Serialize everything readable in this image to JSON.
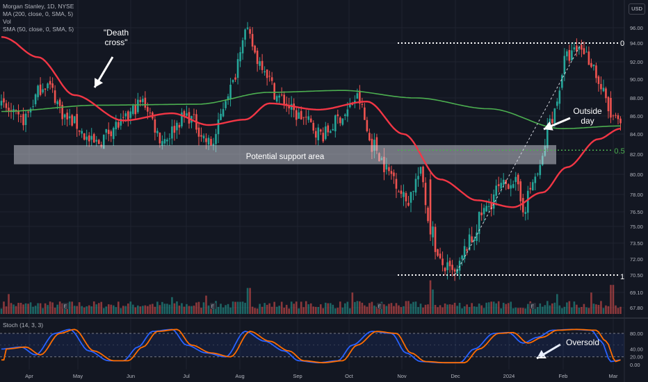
{
  "legend": {
    "symbol": "Morgan Stanley, 1D, NYSE",
    "ma200": "MA (200, close, 0, SMA, 5)",
    "vol": "Vol",
    "sma50": "SMA (50, close, 0, SMA, 5)"
  },
  "currency_button": "USD",
  "stoch_label": "Stoch (14, 3, 3)",
  "annotations": {
    "death_cross": "\"Death\ncross\"",
    "outside_day": "Outside\nday",
    "oversold": "Oversold",
    "support_zone": "Potential support area",
    "fib_0": "0",
    "fib_05": "0.5",
    "fib_1": "1"
  },
  "colors": {
    "background": "#131722",
    "grid": "#1f2330",
    "up": "#26a69a",
    "down": "#ef5350",
    "ma200": "#4caf50",
    "sma50": "#f23645",
    "stoch_k": "#2962ff",
    "stoch_d": "#ff6d00",
    "support_zone": "#d1d4dc",
    "text": "#b2b5be"
  },
  "chart_data": {
    "type": "candlestick",
    "x_labels": [
      "Apr",
      "May",
      "Jun",
      "Jul",
      "Aug",
      "Sep",
      "Oct",
      "Nov",
      "Dec",
      "2024",
      "Feb",
      "Mar"
    ],
    "y_ticks": [
      "96.00",
      "94.00",
      "92.00",
      "90.00",
      "88.00",
      "86.00",
      "84.00",
      "82.00",
      "80.00",
      "78.00",
      "76.50",
      "75.00",
      "73.50",
      "72.00",
      "70.50",
      "69.10",
      "67.80"
    ],
    "stoch_ticks": [
      "80.00",
      "40.00",
      "20.00",
      "0.00"
    ],
    "series_keypoints": {
      "price_close": [
        [
          0,
          87.0
        ],
        [
          8,
          85.5
        ],
        [
          18,
          89.5
        ],
        [
          28,
          85.5
        ],
        [
          38,
          83.0
        ],
        [
          48,
          85.0
        ],
        [
          58,
          87.5
        ],
        [
          66,
          83.5
        ],
        [
          76,
          86.0
        ],
        [
          86,
          83.0
        ],
        [
          94,
          89.0
        ],
        [
          100,
          95.5
        ],
        [
          106,
          92.0
        ],
        [
          114,
          88.0
        ],
        [
          122,
          86.0
        ],
        [
          132,
          84.0
        ],
        [
          140,
          86.0
        ],
        [
          146,
          88.0
        ],
        [
          152,
          83.0
        ],
        [
          160,
          80.0
        ],
        [
          166,
          77.5
        ],
        [
          172,
          80.0
        ],
        [
          176,
          75.0
        ],
        [
          180,
          71.5
        ],
        [
          186,
          70.5
        ],
        [
          192,
          73.5
        ],
        [
          198,
          76.5
        ],
        [
          204,
          78.5
        ],
        [
          210,
          79.5
        ],
        [
          214,
          77.0
        ],
        [
          220,
          80.0
        ],
        [
          226,
          86.0
        ],
        [
          232,
          92.5
        ],
        [
          238,
          93.5
        ],
        [
          242,
          92.0
        ],
        [
          246,
          89.0
        ],
        [
          250,
          86.0
        ],
        [
          254,
          85.0
        ]
      ],
      "ma200": [
        [
          0,
          86.5
        ],
        [
          40,
          87.2
        ],
        [
          80,
          87.3
        ],
        [
          110,
          88.6
        ],
        [
          140,
          88.8
        ],
        [
          170,
          88.0
        ],
        [
          200,
          86.8
        ],
        [
          230,
          84.6
        ],
        [
          254,
          84.9
        ]
      ],
      "sma50": [
        [
          0,
          94.8
        ],
        [
          15,
          92.5
        ],
        [
          30,
          88.3
        ],
        [
          50,
          85.5
        ],
        [
          70,
          86.3
        ],
        [
          85,
          85.0
        ],
        [
          100,
          85.6
        ],
        [
          110,
          87.4
        ],
        [
          130,
          86.7
        ],
        [
          150,
          87.6
        ],
        [
          165,
          84.0
        ],
        [
          180,
          79.5
        ],
        [
          195,
          77.5
        ],
        [
          210,
          76.9
        ],
        [
          222,
          78.2
        ],
        [
          232,
          80.7
        ],
        [
          245,
          83.5
        ],
        [
          254,
          84.6
        ]
      ],
      "stoch_k": [
        [
          0,
          40
        ],
        [
          8,
          45
        ],
        [
          14,
          25
        ],
        [
          22,
          80
        ],
        [
          28,
          90
        ],
        [
          36,
          35
        ],
        [
          44,
          10
        ],
        [
          50,
          10
        ],
        [
          56,
          45
        ],
        [
          62,
          85
        ],
        [
          70,
          90
        ],
        [
          76,
          50
        ],
        [
          84,
          30
        ],
        [
          92,
          20
        ],
        [
          100,
          85
        ],
        [
          108,
          60
        ],
        [
          116,
          35
        ],
        [
          122,
          10
        ],
        [
          130,
          5
        ],
        [
          138,
          10
        ],
        [
          144,
          50
        ],
        [
          152,
          85
        ],
        [
          160,
          80
        ],
        [
          166,
          30
        ],
        [
          172,
          8
        ],
        [
          180,
          5
        ],
        [
          188,
          5
        ],
        [
          194,
          40
        ],
        [
          202,
          80
        ],
        [
          208,
          82
        ],
        [
          214,
          55
        ],
        [
          220,
          70
        ],
        [
          226,
          88
        ],
        [
          234,
          90
        ],
        [
          242,
          88
        ],
        [
          246,
          60
        ],
        [
          250,
          8
        ],
        [
          254,
          12
        ]
      ]
    },
    "fib_levels": [
      {
        "label": "0",
        "price": 94.0
      },
      {
        "label": "0.5",
        "price": 82.4
      },
      {
        "label": "1",
        "price": 70.5
      }
    ],
    "support_zone_range": [
      81.0,
      82.9
    ]
  }
}
